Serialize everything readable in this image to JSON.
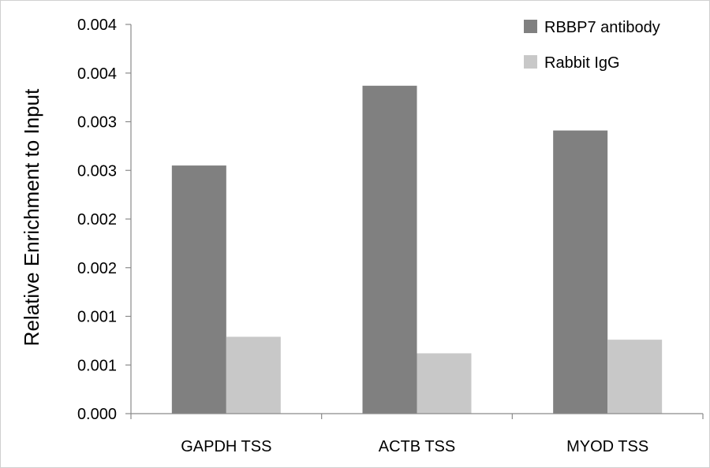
{
  "chart_data": {
    "type": "bar",
    "title": "",
    "xlabel": "",
    "ylabel": "Relative Enrichment to Input",
    "categories": [
      "GAPDH TSS",
      "ACTB TSS",
      "MYOD TSS"
    ],
    "series": [
      {
        "name": "RBBP7 antibody",
        "color": "#808080",
        "values": [
          0.00255,
          0.00337,
          0.00291
        ]
      },
      {
        "name": "Rabbit IgG",
        "color": "#c8c8c8",
        "values": [
          0.00079,
          0.00062,
          0.00076
        ]
      }
    ],
    "ylim": [
      0,
      0.004
    ],
    "yticks": [
      0,
      0.0005,
      0.001,
      0.0015,
      0.002,
      0.0025,
      0.003,
      0.0035,
      0.004
    ],
    "ytick_labels": [
      "0.000",
      "0.001",
      "0.001",
      "0.002",
      "0.002",
      "0.003",
      "0.003",
      "0.004",
      "0.004"
    ],
    "grid": false,
    "legend": "top-right"
  }
}
